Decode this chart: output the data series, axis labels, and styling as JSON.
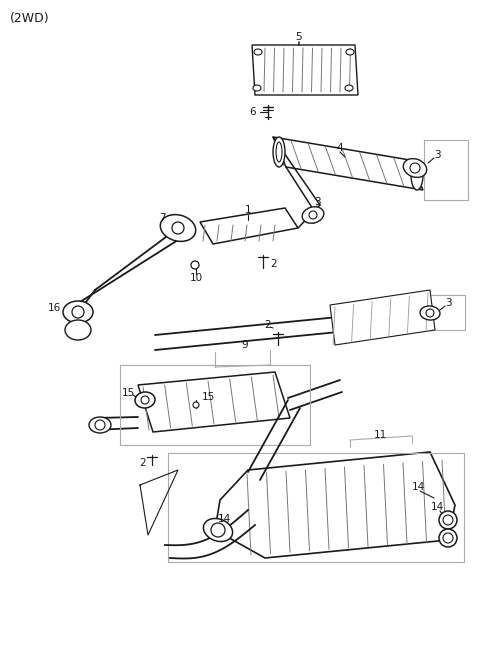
{
  "title": "(2WD)",
  "bg_color": "#ffffff",
  "line_color": "#1a1a1a",
  "gray_color": "#aaaaaa",
  "fig_width": 4.8,
  "fig_height": 6.56,
  "dpi": 100
}
